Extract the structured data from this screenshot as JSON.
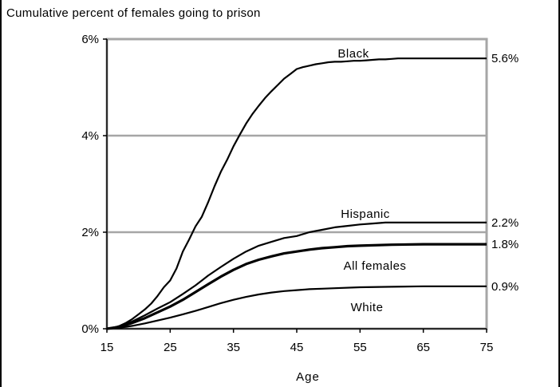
{
  "chart_data": {
    "type": "line",
    "title": "Cumulative percent of females going to prison",
    "xlabel": "Age",
    "ylabel": "",
    "xlim": [
      15,
      75
    ],
    "ylim": [
      0,
      6
    ],
    "x_ticks": [
      "15",
      "25",
      "35",
      "45",
      "55",
      "65",
      "75"
    ],
    "y_ticks": [
      "0%",
      "2%",
      "4%",
      "6%"
    ],
    "grid": "horizontal",
    "series": [
      {
        "name": "Black",
        "end_label": "5.6%",
        "x": [
          15,
          16,
          17,
          18,
          19,
          20,
          21,
          22,
          23,
          24,
          25,
          26,
          27,
          28,
          29,
          30,
          31,
          32,
          33,
          34,
          35,
          36,
          37,
          38,
          39,
          40,
          41,
          42,
          43,
          44,
          45,
          46,
          47,
          48,
          49,
          50,
          51,
          52,
          53,
          54,
          55,
          56,
          57,
          58,
          59,
          60,
          61,
          62,
          63,
          64,
          65,
          70,
          75
        ],
        "y": [
          0,
          0.02,
          0.06,
          0.12,
          0.2,
          0.3,
          0.4,
          0.52,
          0.68,
          0.86,
          1.0,
          1.25,
          1.6,
          1.85,
          2.12,
          2.32,
          2.62,
          2.95,
          3.25,
          3.5,
          3.78,
          4.02,
          4.25,
          4.45,
          4.62,
          4.78,
          4.92,
          5.05,
          5.18,
          5.28,
          5.38,
          5.42,
          5.45,
          5.48,
          5.5,
          5.52,
          5.53,
          5.53,
          5.54,
          5.55,
          5.55,
          5.56,
          5.57,
          5.58,
          5.58,
          5.59,
          5.6,
          5.6,
          5.6,
          5.6,
          5.6,
          5.6,
          5.6
        ]
      },
      {
        "name": "Hispanic",
        "end_label": "2.2%",
        "x": [
          15,
          17,
          19,
          21,
          23,
          25,
          27,
          29,
          31,
          33,
          35,
          37,
          39,
          41,
          43,
          45,
          47,
          49,
          51,
          53,
          55,
          57,
          59,
          61,
          65,
          70,
          75
        ],
        "y": [
          0,
          0.05,
          0.15,
          0.28,
          0.42,
          0.55,
          0.72,
          0.9,
          1.1,
          1.28,
          1.45,
          1.6,
          1.72,
          1.8,
          1.88,
          1.92,
          2.0,
          2.05,
          2.1,
          2.13,
          2.16,
          2.18,
          2.2,
          2.2,
          2.2,
          2.2,
          2.2
        ]
      },
      {
        "name": "All females",
        "end_label": "1.8%",
        "x": [
          15,
          17,
          19,
          21,
          23,
          25,
          27,
          29,
          31,
          33,
          35,
          37,
          39,
          41,
          43,
          45,
          47,
          49,
          51,
          53,
          55,
          60,
          65,
          70,
          75
        ],
        "y": [
          0,
          0.04,
          0.12,
          0.22,
          0.34,
          0.46,
          0.6,
          0.76,
          0.92,
          1.08,
          1.22,
          1.34,
          1.43,
          1.5,
          1.56,
          1.6,
          1.64,
          1.67,
          1.69,
          1.71,
          1.72,
          1.74,
          1.75,
          1.75,
          1.75
        ]
      },
      {
        "name": "White",
        "end_label": "0.9%",
        "x": [
          15,
          17,
          19,
          21,
          23,
          25,
          27,
          29,
          31,
          33,
          35,
          37,
          39,
          41,
          43,
          45,
          47,
          49,
          51,
          55,
          60,
          65,
          70,
          75
        ],
        "y": [
          0,
          0.02,
          0.06,
          0.11,
          0.17,
          0.23,
          0.3,
          0.37,
          0.45,
          0.53,
          0.6,
          0.66,
          0.71,
          0.75,
          0.78,
          0.8,
          0.82,
          0.83,
          0.84,
          0.86,
          0.87,
          0.88,
          0.88,
          0.88
        ]
      }
    ]
  }
}
